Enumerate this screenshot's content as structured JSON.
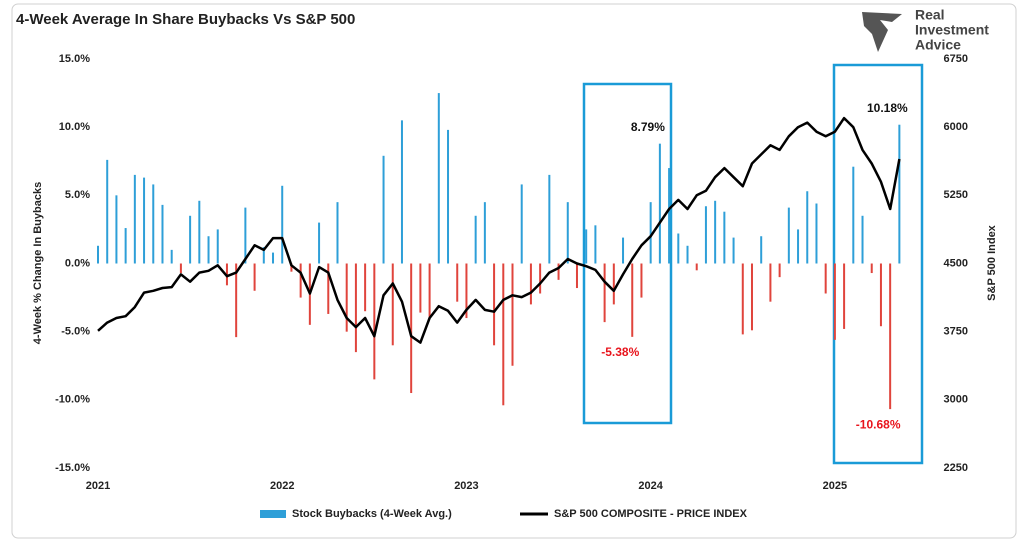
{
  "logo": {
    "lines": [
      "Real",
      "Investment",
      "Advice"
    ]
  },
  "chart_data": {
    "type": "bar-line",
    "title": "4-Week Average In Share Buybacks Vs S&P 500",
    "y_label": "4-Week % Change In Buybacks",
    "y2_label": "S&P 500 Index",
    "x": [
      2021.0,
      2021.05,
      2021.1,
      2021.15,
      2021.2,
      2021.25,
      2021.3,
      2021.35,
      2021.4,
      2021.45,
      2021.5,
      2021.55,
      2021.6,
      2021.65,
      2021.7,
      2021.75,
      2021.8,
      2021.85,
      2021.9,
      2021.95,
      2022.0,
      2022.05,
      2022.1,
      2022.15,
      2022.2,
      2022.25,
      2022.3,
      2022.35,
      2022.4,
      2022.45,
      2022.5,
      2022.55,
      2022.6,
      2022.65,
      2022.7,
      2022.75,
      2022.8,
      2022.85,
      2022.9,
      2022.95,
      2023.0,
      2023.05,
      2023.1,
      2023.15,
      2023.2,
      2023.25,
      2023.3,
      2023.35,
      2023.4,
      2023.45,
      2023.5,
      2023.55,
      2023.6,
      2023.65,
      2023.7,
      2023.75,
      2023.8,
      2023.85,
      2023.9,
      2023.95,
      2024.0,
      2024.05,
      2024.1,
      2024.15,
      2024.2,
      2024.25,
      2024.3,
      2024.35,
      2024.4,
      2024.45,
      2024.5,
      2024.55,
      2024.6,
      2024.65,
      2024.7,
      2024.75,
      2024.8,
      2024.85,
      2024.9,
      2024.95,
      2025.0,
      2025.05,
      2025.1,
      2025.15,
      2025.2,
      2025.25,
      2025.3,
      2025.35
    ],
    "xlim": [
      2021,
      2025.5
    ],
    "xticks": [
      2021,
      2022,
      2023,
      2024,
      2025
    ],
    "ylim": [
      -15,
      15
    ],
    "yticks": [
      {
        "value": 15,
        "label": "15.0%"
      },
      {
        "value": 10,
        "label": "10.0%"
      },
      {
        "value": 5,
        "label": "5.0%"
      },
      {
        "value": 0,
        "label": "0.0%"
      },
      {
        "value": -5,
        "label": "-5.0%"
      },
      {
        "value": -10,
        "label": "-10.0%"
      },
      {
        "value": -15,
        "label": "-15.0%"
      }
    ],
    "y2lim": [
      2250,
      6750
    ],
    "y2ticks": [
      6750,
      6000,
      5250,
      4500,
      3750,
      3000,
      2250
    ],
    "series": [
      {
        "name": "Stock Buybacks (4-Week Avg.)",
        "type": "bar",
        "color": "#2e9fd8",
        "negative_color": "#e0443c",
        "values": [
          1.3,
          7.6,
          5.0,
          2.6,
          6.5,
          6.3,
          5.8,
          4.3,
          1.0,
          -0.7,
          3.5,
          4.6,
          2.0,
          2.5,
          -1.6,
          -5.4,
          4.1,
          -2.0,
          1.2,
          0.8,
          5.7,
          -0.6,
          -2.5,
          -4.5,
          3.0,
          -3.7,
          4.5,
          -5.0,
          -6.5,
          -3.5,
          -8.5,
          7.9,
          -6.0,
          10.5,
          -9.5,
          -3.6,
          -4.0,
          12.5,
          9.8,
          -2.8,
          -4.0,
          3.5,
          4.5,
          -6.0,
          -10.4,
          -7.5,
          5.8,
          -3.0,
          -2.2,
          6.5,
          -1.2,
          4.5,
          -1.8,
          2.5,
          2.8,
          -4.3,
          -3.0,
          1.9,
          -5.38,
          -2.5,
          4.5,
          8.79,
          7.0,
          2.2,
          1.3,
          -0.5,
          4.2,
          4.6,
          3.8,
          1.9,
          -5.2,
          -4.9,
          2.0,
          -2.8,
          -1.0,
          4.1,
          2.5,
          5.3,
          4.4,
          -2.2,
          -5.6,
          -4.8,
          7.1,
          3.5,
          -0.7,
          -4.6,
          -10.68,
          10.18
        ],
        "value_labels": [
          null,
          null,
          null,
          null,
          null,
          null,
          null,
          null,
          null,
          null,
          null,
          null,
          null,
          null,
          null,
          null,
          null,
          null,
          null,
          null,
          null,
          null,
          null,
          null,
          null,
          null,
          null,
          null,
          null,
          null,
          null,
          null,
          null,
          null,
          null,
          null,
          null,
          null,
          null,
          null,
          null,
          null,
          null,
          null,
          null,
          null,
          null,
          null,
          null,
          null,
          null,
          null,
          null,
          null,
          null,
          null,
          null,
          null,
          "-5.38%",
          null,
          null,
          "8.79%",
          null,
          null,
          null,
          null,
          null,
          null,
          null,
          null,
          null,
          null,
          null,
          null,
          null,
          null,
          null,
          null,
          null,
          null,
          null,
          null,
          null,
          null,
          null,
          null,
          "-10.68%",
          "10.18%"
        ]
      },
      {
        "name": "S&P 500 COMPOSITE - PRICE INDEX",
        "type": "line",
        "axis": "y2",
        "color": "#000000",
        "values": [
          3760,
          3850,
          3900,
          3920,
          4020,
          4180,
          4200,
          4230,
          4240,
          4380,
          4300,
          4400,
          4420,
          4480,
          4360,
          4400,
          4550,
          4700,
          4650,
          4780,
          4780,
          4480,
          4400,
          4170,
          4460,
          4400,
          4100,
          3900,
          3800,
          3900,
          3700,
          4150,
          4280,
          4080,
          3700,
          3630,
          3900,
          4030,
          3980,
          3850,
          3990,
          4100,
          3990,
          3970,
          4100,
          4150,
          4130,
          4180,
          4280,
          4400,
          4450,
          4550,
          4500,
          4470,
          4430,
          4300,
          4200,
          4380,
          4550,
          4700,
          4800,
          4950,
          5100,
          5200,
          5100,
          5250,
          5300,
          5450,
          5550,
          5450,
          5350,
          5600,
          5700,
          5800,
          5750,
          5900,
          6000,
          6050,
          5950,
          5900,
          5950,
          6100,
          6000,
          5750,
          5600,
          5400,
          5100,
          5650
        ]
      }
    ]
  }
}
